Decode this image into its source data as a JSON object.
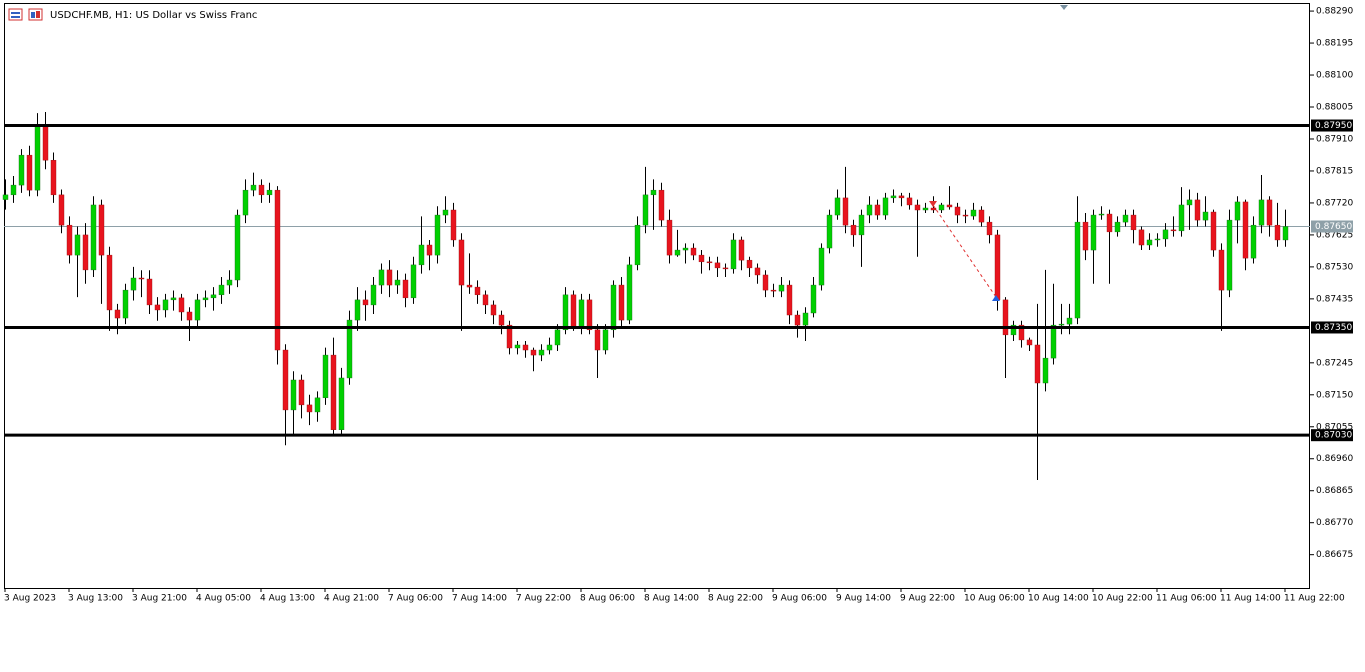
{
  "chart_data": {
    "type": "candlestick",
    "title": "USDCHF.MB, H1:  US Dollar vs Swiss Franc",
    "up_color": "#00d000",
    "down_color": "#e8141e",
    "wick_color": "#000000",
    "categories": [
      "3 Aug 2023",
      null,
      null,
      null,
      null,
      null,
      null,
      null,
      "3 Aug 13:00",
      null,
      null,
      null,
      null,
      null,
      null,
      null,
      "3 Aug 21:00",
      null,
      null,
      null,
      null,
      null,
      null,
      null,
      "4 Aug 05:00",
      null,
      null,
      null,
      null,
      null,
      null,
      null,
      "4 Aug 13:00",
      null,
      null,
      null,
      null,
      null,
      null,
      null,
      "4 Aug 21:00",
      null,
      null,
      null,
      null,
      null,
      null,
      null,
      "7 Aug 06:00",
      null,
      null,
      null,
      null,
      null,
      null,
      null,
      "7 Aug 14:00",
      null,
      null,
      null,
      null,
      null,
      null,
      null,
      "7 Aug 22:00",
      null,
      null,
      null,
      null,
      null,
      null,
      null,
      "8 Aug 06:00",
      null,
      null,
      null,
      null,
      null,
      null,
      null,
      "8 Aug 14:00",
      null,
      null,
      null,
      null,
      null,
      null,
      null,
      "8 Aug 22:00",
      null,
      null,
      null,
      null,
      null,
      null,
      null,
      "9 Aug 06:00",
      null,
      null,
      null,
      null,
      null,
      null,
      null,
      "9 Aug 14:00",
      null,
      null,
      null,
      null,
      null,
      null,
      null,
      "9 Aug 22:00",
      null,
      null,
      null,
      null,
      null,
      null,
      null,
      "10 Aug 06:00",
      null,
      null,
      null,
      null,
      null,
      null,
      null,
      "10 Aug 14:00",
      null,
      null,
      null,
      null,
      null,
      null,
      null,
      "10 Aug 22:00",
      null,
      null,
      null,
      null,
      null,
      null,
      null,
      "11 Aug 06:00",
      null,
      null,
      null,
      null,
      null,
      null,
      null,
      "11 Aug 14:00",
      null,
      null,
      null,
      null,
      null,
      null,
      null,
      "11 Aug 22:00"
    ],
    "open": [
      0.8773,
      0.87744,
      0.87773,
      0.87862,
      0.87758,
      0.87951,
      0.87847,
      0.87744,
      0.87654,
      0.87565,
      0.87625,
      0.87521,
      0.87714,
      0.87565,
      0.87402,
      0.87378,
      0.87461,
      0.87497,
      0.87494,
      0.87417,
      0.87402,
      0.87432,
      0.87438,
      0.87396,
      0.87372,
      0.87432,
      0.87438,
      0.87447,
      0.87476,
      0.87491,
      0.87684,
      0.87758,
      0.87773,
      0.87744,
      0.87758,
      0.87283,
      0.87105,
      0.87194,
      0.8712,
      0.87099,
      0.87141,
      0.87268,
      0.87046,
      0.872,
      0.87372,
      0.87432,
      0.87417,
      0.87476,
      0.87521,
      0.87476,
      0.87491,
      0.87438,
      0.87536,
      0.87595,
      0.87565,
      0.87684,
      0.87699,
      0.8761,
      0.87476,
      0.8747,
      0.87447,
      0.87417,
      0.87387,
      0.87357,
      0.87289,
      0.87298,
      0.87283,
      0.87268,
      0.87283,
      0.87298,
      0.87343,
      0.87447,
      0.87349,
      0.87432,
      0.87343,
      0.87283,
      0.87343,
      0.87476,
      0.87372,
      0.87536,
      0.87654,
      0.87744,
      0.87758,
      0.87669,
      0.87565,
      0.8758,
      0.87586,
      0.87565,
      0.87545,
      0.87542,
      0.87527,
      0.87524,
      0.8761,
      0.8755,
      0.87527,
      0.87506,
      0.87461,
      0.87458,
      0.87476,
      0.87387,
      0.87357,
      0.87393,
      0.87476,
      0.87586,
      0.87684,
      0.87735,
      0.87654,
      0.87625,
      0.87684,
      0.87714,
      0.87684,
      0.87735,
      0.87741,
      0.87735,
      0.87714,
      0.87699,
      0.87705,
      0.87699,
      0.87714,
      0.87708,
      0.87684,
      0.87681,
      0.87699,
      0.87663,
      0.87625,
      0.87432,
      0.87328,
      0.87357,
      0.87313,
      0.87298,
      0.87185,
      0.87259,
      0.87357,
      0.8736,
      0.87378,
      0.87663,
      0.8758,
      0.87684,
      0.87687,
      0.87634,
      0.87663,
      0.87684,
      0.8764,
      0.87595,
      0.8761,
      0.87613,
      0.8764,
      0.87637,
      0.87714,
      0.87729,
      0.87669,
      0.87693,
      0.8758,
      0.87461,
      0.87669,
      0.87723,
      0.87556,
      0.87654,
      0.87729,
      0.87654,
      0.8761
    ],
    "high": [
      0.8779,
      0.878,
      0.8788,
      0.8789,
      0.87987,
      0.8799,
      0.8787,
      0.8776,
      0.8768,
      0.8765,
      0.8766,
      0.8774,
      0.8773,
      0.8759,
      0.8742,
      0.8748,
      0.8753,
      0.8752,
      0.8752,
      0.8744,
      0.8745,
      0.8746,
      0.8745,
      0.8741,
      0.8745,
      0.8746,
      0.8747,
      0.875,
      0.8752,
      0.877,
      0.8779,
      0.8781,
      0.8779,
      0.8778,
      0.8777,
      0.873,
      0.8722,
      0.8721,
      0.8715,
      0.8716,
      0.8729,
      0.8732,
      0.8723,
      0.874,
      0.8747,
      0.8746,
      0.875,
      0.8754,
      0.8755,
      0.8752,
      0.8751,
      0.8756,
      0.8768,
      0.8761,
      0.8771,
      0.8774,
      0.8772,
      0.8763,
      0.8757,
      0.8749,
      0.8746,
      0.8743,
      0.874,
      0.8737,
      0.8731,
      0.8731,
      0.8729,
      0.873,
      0.8732,
      0.8736,
      0.8747,
      0.8746,
      0.8745,
      0.8745,
      0.8736,
      0.8736,
      0.8749,
      0.875,
      0.8756,
      0.8768,
      0.87827,
      0.8779,
      0.8778,
      0.877,
      0.8764,
      0.876,
      0.876,
      0.8758,
      0.8756,
      0.8756,
      0.8754,
      0.8763,
      0.8762,
      0.8756,
      0.8754,
      0.8752,
      0.8748,
      0.875,
      0.8749,
      0.874,
      0.8741,
      0.875,
      0.876,
      0.877,
      0.8776,
      0.87827,
      0.8767,
      0.877,
      0.8774,
      0.8773,
      0.8775,
      0.8776,
      0.8775,
      0.8775,
      0.8773,
      0.8772,
      0.8774,
      0.8772,
      0.8777,
      0.8772,
      0.877,
      0.8772,
      0.8771,
      0.8768,
      0.8764,
      0.8744,
      0.8737,
      0.8737,
      0.8732,
      0.8742,
      0.87521,
      0.8748,
      0.8742,
      0.8742,
      0.8774,
      0.8769,
      0.877,
      0.8771,
      0.877,
      0.8768,
      0.877,
      0.877,
      0.8765,
      0.8763,
      0.8763,
      0.8766,
      0.8768,
      0.87767,
      0.8776,
      0.8775,
      0.8774,
      0.877,
      0.876,
      0.877,
      0.8774,
      0.8773,
      0.8768,
      0.87803,
      0.8774,
      0.8772,
      0.877
    ],
    "low": [
      0.877,
      0.8772,
      0.8775,
      0.8774,
      0.8774,
      0.8782,
      0.8772,
      0.8763,
      0.8754,
      0.8744,
      0.8748,
      0.875,
      0.8742,
      0.8734,
      0.8733,
      0.8736,
      0.8743,
      0.8744,
      0.8739,
      0.8737,
      0.8738,
      0.874,
      0.8737,
      0.8731,
      0.8735,
      0.8741,
      0.874,
      0.8742,
      0.8745,
      0.8747,
      0.8766,
      0.8774,
      0.8772,
      0.8772,
      0.8724,
      0.87,
      0.8703,
      0.8708,
      0.8706,
      0.8707,
      0.8712,
      0.8703,
      0.8703,
      0.8718,
      0.8734,
      0.8737,
      0.8739,
      0.8745,
      0.8744,
      0.8745,
      0.8741,
      0.8742,
      0.8751,
      0.8752,
      0.8754,
      0.8766,
      0.8759,
      0.8734,
      0.8745,
      0.8742,
      0.8739,
      0.8736,
      0.8733,
      0.8727,
      0.8727,
      0.8726,
      0.8722,
      0.8725,
      0.8727,
      0.8728,
      0.8733,
      0.8734,
      0.8733,
      0.8733,
      0.872,
      0.8727,
      0.8732,
      0.8735,
      0.8736,
      0.8752,
      0.8763,
      0.8764,
      0.8765,
      0.8754,
      0.8756,
      0.8754,
      0.8755,
      0.8751,
      0.8752,
      0.875,
      0.875,
      0.8751,
      0.8752,
      0.875,
      0.8748,
      0.8744,
      0.8744,
      0.8744,
      0.8736,
      0.8732,
      0.8731,
      0.8738,
      0.8746,
      0.8757,
      0.8767,
      0.8763,
      0.8759,
      0.8753,
      0.8766,
      0.8767,
      0.8767,
      0.8772,
      0.8771,
      0.877,
      0.8756,
      0.8769,
      0.8769,
      0.8769,
      0.877,
      0.8766,
      0.8766,
      0.8767,
      0.8765,
      0.876,
      0.874,
      0.872,
      0.8731,
      0.8729,
      0.8728,
      0.86897,
      0.8716,
      0.8724,
      0.8733,
      0.8733,
      0.8736,
      0.8755,
      0.8748,
      0.8767,
      0.8748,
      0.8762,
      0.8765,
      0.876,
      0.8758,
      0.8758,
      0.8759,
      0.8759,
      0.8762,
      0.8762,
      0.8764,
      0.8765,
      0.8765,
      0.8756,
      0.8734,
      0.8744,
      0.876,
      0.8752,
      0.8754,
      0.8763,
      0.8762,
      0.8759,
      0.8759
    ],
    "close": [
      0.87744,
      0.87773,
      0.87862,
      0.87758,
      0.87951,
      0.87847,
      0.87744,
      0.87654,
      0.87565,
      0.87625,
      0.87521,
      0.87714,
      0.87565,
      0.87402,
      0.87378,
      0.87461,
      0.87497,
      0.87494,
      0.87417,
      0.87402,
      0.87432,
      0.87438,
      0.87396,
      0.87372,
      0.87432,
      0.87438,
      0.87447,
      0.87476,
      0.87491,
      0.87684,
      0.87758,
      0.87773,
      0.87744,
      0.87758,
      0.87283,
      0.87105,
      0.87194,
      0.8712,
      0.87099,
      0.87141,
      0.87268,
      0.87046,
      0.872,
      0.87372,
      0.87432,
      0.87417,
      0.87476,
      0.87521,
      0.87476,
      0.87491,
      0.87438,
      0.87536,
      0.87595,
      0.87565,
      0.87684,
      0.87699,
      0.8761,
      0.87476,
      0.8747,
      0.87447,
      0.87417,
      0.87387,
      0.87357,
      0.87289,
      0.87298,
      0.87283,
      0.87268,
      0.87283,
      0.87298,
      0.87343,
      0.87447,
      0.87349,
      0.87432,
      0.87343,
      0.87283,
      0.87343,
      0.87476,
      0.87372,
      0.87536,
      0.87654,
      0.87744,
      0.87758,
      0.87669,
      0.87565,
      0.8758,
      0.87586,
      0.87565,
      0.87545,
      0.87542,
      0.87527,
      0.87524,
      0.8761,
      0.8755,
      0.87527,
      0.87506,
      0.87461,
      0.87458,
      0.87476,
      0.87387,
      0.87357,
      0.87393,
      0.87476,
      0.87586,
      0.87684,
      0.87735,
      0.87654,
      0.87625,
      0.87684,
      0.87714,
      0.87684,
      0.87735,
      0.87741,
      0.87735,
      0.87714,
      0.87699,
      0.87705,
      0.87699,
      0.87714,
      0.87708,
      0.87684,
      0.87681,
      0.87699,
      0.87663,
      0.87625,
      0.87432,
      0.87328,
      0.87357,
      0.87313,
      0.87298,
      0.87185,
      0.87259,
      0.87357,
      0.8736,
      0.87378,
      0.87663,
      0.8758,
      0.87684,
      0.87687,
      0.87634,
      0.87663,
      0.87684,
      0.8764,
      0.87595,
      0.8761,
      0.87613,
      0.8764,
      0.87637,
      0.87714,
      0.87729,
      0.87669,
      0.87693,
      0.8758,
      0.87461,
      0.87669,
      0.87723,
      0.87556,
      0.87654,
      0.87729,
      0.87654,
      0.8761,
      0.8765
    ],
    "ylim": [
      0.86576,
      0.88314
    ],
    "yticks": [
      {
        "value": 0.8829,
        "label": "0.88290"
      },
      {
        "value": 0.88195,
        "label": "0.88195"
      },
      {
        "value": 0.881,
        "label": "0.88100"
      },
      {
        "value": 0.88005,
        "label": "0.88005"
      },
      {
        "value": 0.8791,
        "label": "0.87910"
      },
      {
        "value": 0.87815,
        "label": "0.87815"
      },
      {
        "value": 0.8772,
        "label": "0.87720"
      },
      {
        "value": 0.87625,
        "label": "0.87625"
      },
      {
        "value": 0.8753,
        "label": "0.87530"
      },
      {
        "value": 0.87435,
        "label": "0.87435"
      },
      {
        "value": 0.87245,
        "label": "0.87245"
      },
      {
        "value": 0.8715,
        "label": "0.87150"
      },
      {
        "value": 0.87055,
        "label": "0.87055"
      },
      {
        "value": 0.8696,
        "label": "0.86960"
      },
      {
        "value": 0.86865,
        "label": "0.86865"
      },
      {
        "value": 0.8677,
        "label": "0.86770"
      },
      {
        "value": 0.86675,
        "label": "0.86675"
      }
    ],
    "levels": [
      {
        "value": 0.8795,
        "label": "0.87950"
      },
      {
        "value": 0.8735,
        "label": "0.87350"
      },
      {
        "value": 0.8703,
        "label": "0.87030"
      }
    ],
    "price_line": {
      "value": 0.8765,
      "label": "0.87650"
    }
  }
}
